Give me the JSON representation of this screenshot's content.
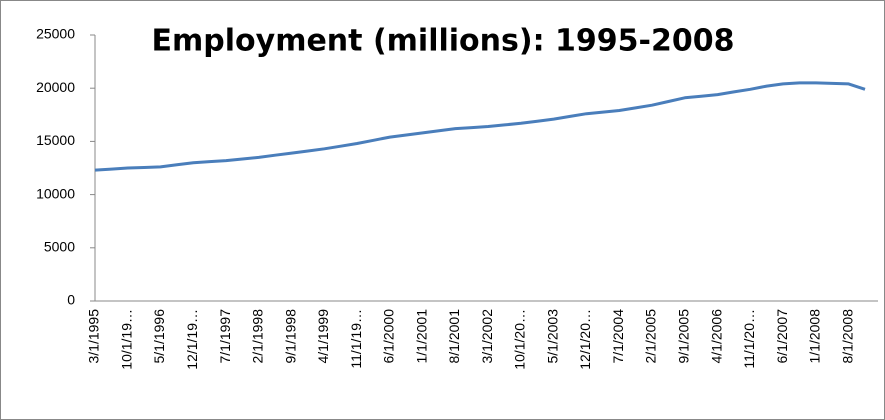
{
  "chart_data": {
    "type": "line",
    "title": "Employment (millions): 1995-2008",
    "categories": [
      "3/1/1995",
      null,
      "10/1/19…",
      null,
      "5/1/1996",
      null,
      "12/1/19…",
      null,
      "7/1/1997",
      null,
      "2/1/1998",
      null,
      "9/1/1998",
      null,
      "4/1/1999",
      null,
      "11/1/19…",
      null,
      "6/1/2000",
      null,
      "1/1/2001",
      null,
      "8/1/2001",
      null,
      "3/1/2002",
      null,
      "10/1/20…",
      null,
      "5/1/2003",
      null,
      "12/1/20…",
      null,
      "7/1/2004",
      null,
      "2/1/2005",
      null,
      "9/1/2005",
      null,
      "4/1/2006",
      null,
      "11/1/20…",
      null,
      "6/1/2007",
      null,
      "1/1/2008",
      null,
      "8/1/2008",
      null
    ],
    "series": [
      {
        "name": "Employment",
        "color": "#4a7ebb",
        "values": [
          12300,
          12400,
          12500,
          12550,
          12600,
          12800,
          13000,
          13100,
          13200,
          13350,
          13500,
          13700,
          13900,
          14100,
          14300,
          14550,
          14800,
          15100,
          15400,
          15600,
          15800,
          16000,
          16200,
          16300,
          16400,
          16550,
          16700,
          16900,
          17100,
          17350,
          17600,
          17750,
          17900,
          18150,
          18400,
          18750,
          19100,
          19250,
          19400,
          19650,
          19900,
          20200,
          20400,
          20500,
          20500,
          20450,
          20400,
          19900
        ]
      }
    ],
    "ylim": [
      0,
      25000
    ],
    "yticks": [
      0,
      5000,
      10000,
      15000,
      20000,
      25000
    ]
  }
}
